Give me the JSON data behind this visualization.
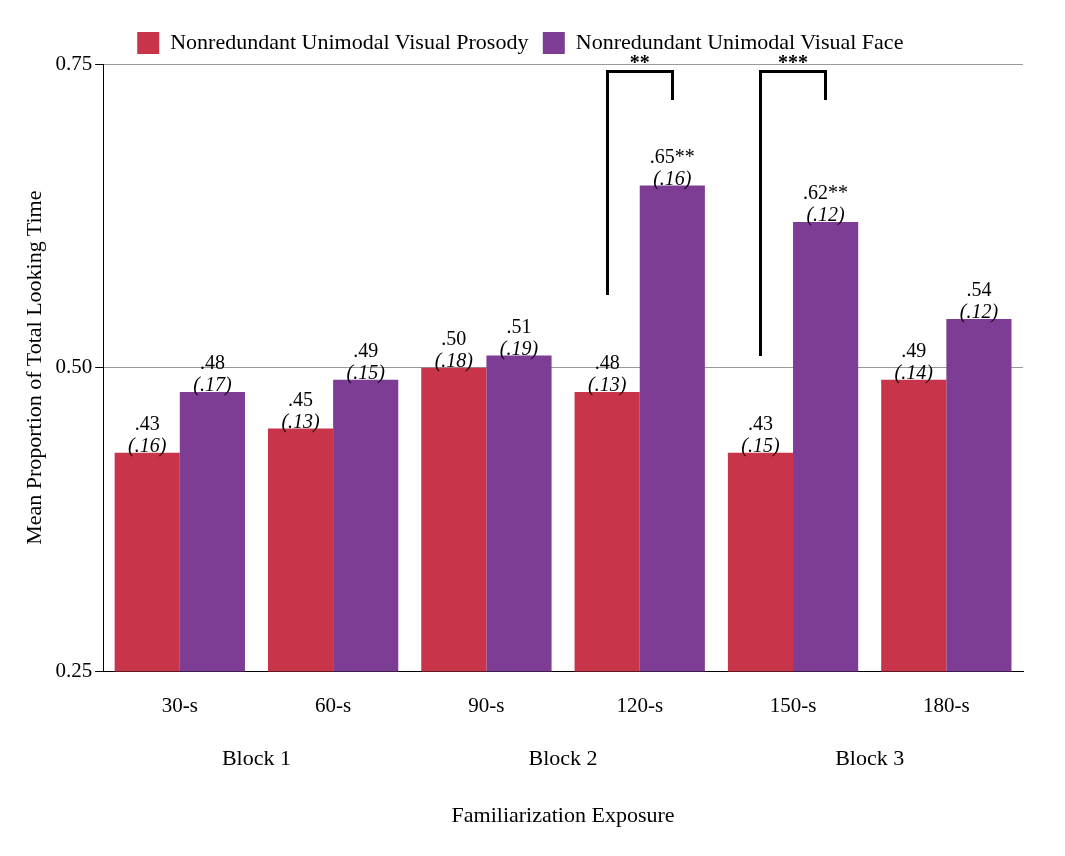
{
  "chart_data": {
    "type": "bar",
    "xlabel": "Familiarization Exposure",
    "ylabel": "Mean Proportion of Total Looking Time",
    "categories": [
      "30-s",
      "60-s",
      "90-s",
      "120-s",
      "150-s",
      "180-s"
    ],
    "series": [
      {
        "name": "Nonredundant Unimodal Visual Prosody",
        "color": "#c8344a",
        "values": [
          0.43,
          0.45,
          0.5,
          0.48,
          0.43,
          0.49
        ],
        "value_labels": [
          ".43\n(.16)",
          ".45\n(.13)",
          ".50\n(.18)",
          ".48\n(.13)",
          ".43\n(.15)",
          ".49\n(.14)"
        ]
      },
      {
        "name": "Nonredundant Unimodal Visual Face",
        "color": "#7d3d94",
        "values": [
          0.48,
          0.49,
          0.51,
          0.65,
          0.62,
          0.54
        ],
        "value_labels": [
          ".48\n(.17)",
          ".49\n(.15)",
          ".51\n(.19)",
          ".65**\n(.16)",
          ".62**\n(.12)",
          ".54\n(.12)"
        ]
      }
    ],
    "ylim": [
      0.25,
      0.75
    ],
    "yticks": [
      {
        "value": 0.25,
        "label": "0.25"
      },
      {
        "value": 0.5,
        "label": "0.50"
      },
      {
        "value": 0.75,
        "label": "0.75"
      }
    ],
    "grid": "y",
    "legend": "top",
    "annotations": [
      "**",
      "***",
      "Block 1",
      "Block 2",
      "Block 3"
    ]
  }
}
